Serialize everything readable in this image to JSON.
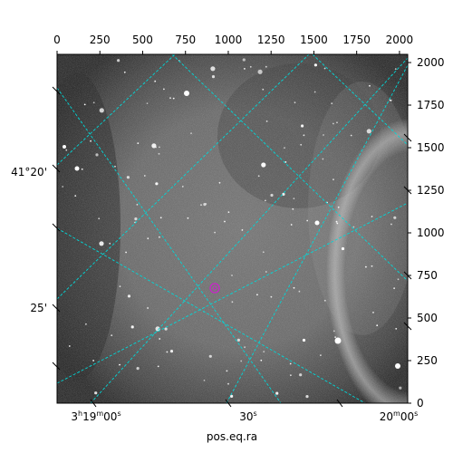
{
  "figure": {
    "xlabel": "pos.eq.ra",
    "top_ticks": [
      "0",
      "250",
      "500",
      "750",
      "1000",
      "1250",
      "1500",
      "1750",
      "2000"
    ],
    "right_ticks": [
      "0",
      "250",
      "500",
      "750",
      "1000",
      "1250",
      "1500",
      "1750",
      "2000"
    ],
    "dec_labels": [
      "41°20'",
      "25'"
    ],
    "ra_labels": [
      {
        "h": "3",
        "hu": "h",
        "m": "19",
        "mu": "m",
        "s": "00",
        "su": "s"
      },
      {
        "s": "30",
        "su": "s"
      },
      {
        "m": "20",
        "mu": "m",
        "s": "00",
        "su": "s"
      }
    ],
    "colors": {
      "grid": "#00d8d8",
      "marker": "#cc22cc",
      "frame": "#000000"
    },
    "pixel_range": [
      0,
      2048
    ],
    "marker_icon": "target-circle"
  }
}
